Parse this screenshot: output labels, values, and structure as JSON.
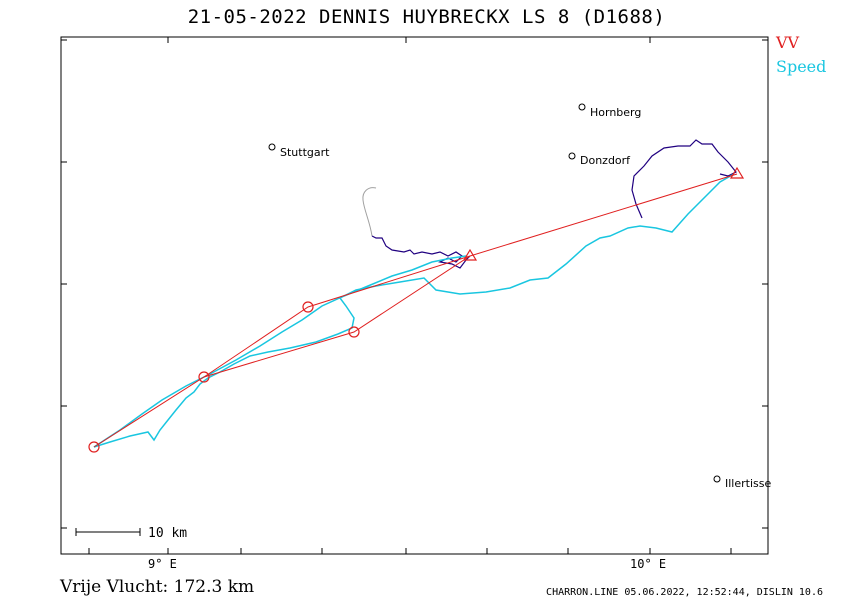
{
  "title": "21-05-2022   DENNIS HUYBRECKX   LS 8 (D1688)",
  "legend": {
    "vv": "VV",
    "speed": "Speed"
  },
  "colors": {
    "vv": "#e02020",
    "speed": "#19c6e0",
    "climb": "#200080",
    "gps_gray": "#a0a0a0"
  },
  "cities": [
    {
      "name": "Stuttgart",
      "lon": 9.18,
      "lat": 48.78
    },
    {
      "name": "Hornberg",
      "lon": 9.86,
      "lat": 48.82
    },
    {
      "name": "Donzdorf",
      "lon": 9.84,
      "lat": 48.78
    },
    {
      "name": "Illertisse",
      "lon": 10.14,
      "lat": 48.22
    }
  ],
  "axis": {
    "x_ticks": [
      "9° E",
      "10° E"
    ]
  },
  "scale_bar": {
    "label": "10 km"
  },
  "distance_label": "Vrije Vlucht:  172.3 km",
  "footer": "CHARRON.LINE 05.06.2022, 12:52:44, DISLIN 10.6"
}
